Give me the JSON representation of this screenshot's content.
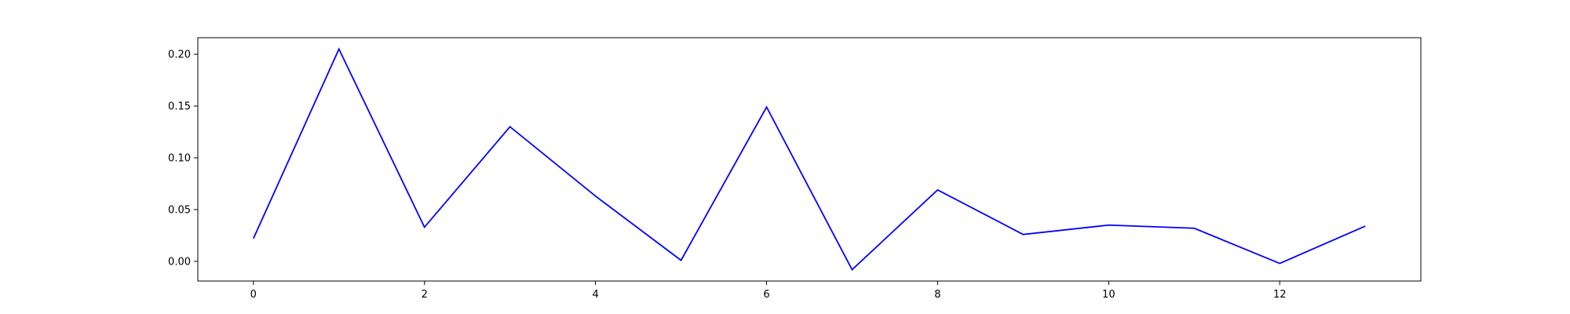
{
  "chart_data": {
    "type": "line",
    "title": "",
    "xlabel": "",
    "ylabel": "",
    "x": [
      0,
      1,
      2,
      3,
      4,
      5,
      6,
      7,
      8,
      9,
      10,
      11,
      12,
      13
    ],
    "series": [
      {
        "values": [
          0.022,
          0.205,
          0.033,
          0.13,
          0.063,
          0.001,
          0.149,
          -0.008,
          0.069,
          0.026,
          0.035,
          0.032,
          -0.002,
          0.034
        ],
        "color": "#0000ff"
      }
    ],
    "xlim": [
      -0.65,
      13.65
    ],
    "ylim": [
      -0.019,
      0.216
    ],
    "xticks": [
      0,
      2,
      4,
      6,
      8,
      10,
      12
    ],
    "xtick_labels": [
      "0",
      "2",
      "4",
      "6",
      "8",
      "10",
      "12"
    ],
    "yticks": [
      0.0,
      0.05,
      0.1,
      0.15,
      0.2
    ],
    "ytick_labels": [
      "0.00",
      "0.05",
      "0.10",
      "0.15",
      "0.20"
    ],
    "grid": false,
    "legend": false
  }
}
